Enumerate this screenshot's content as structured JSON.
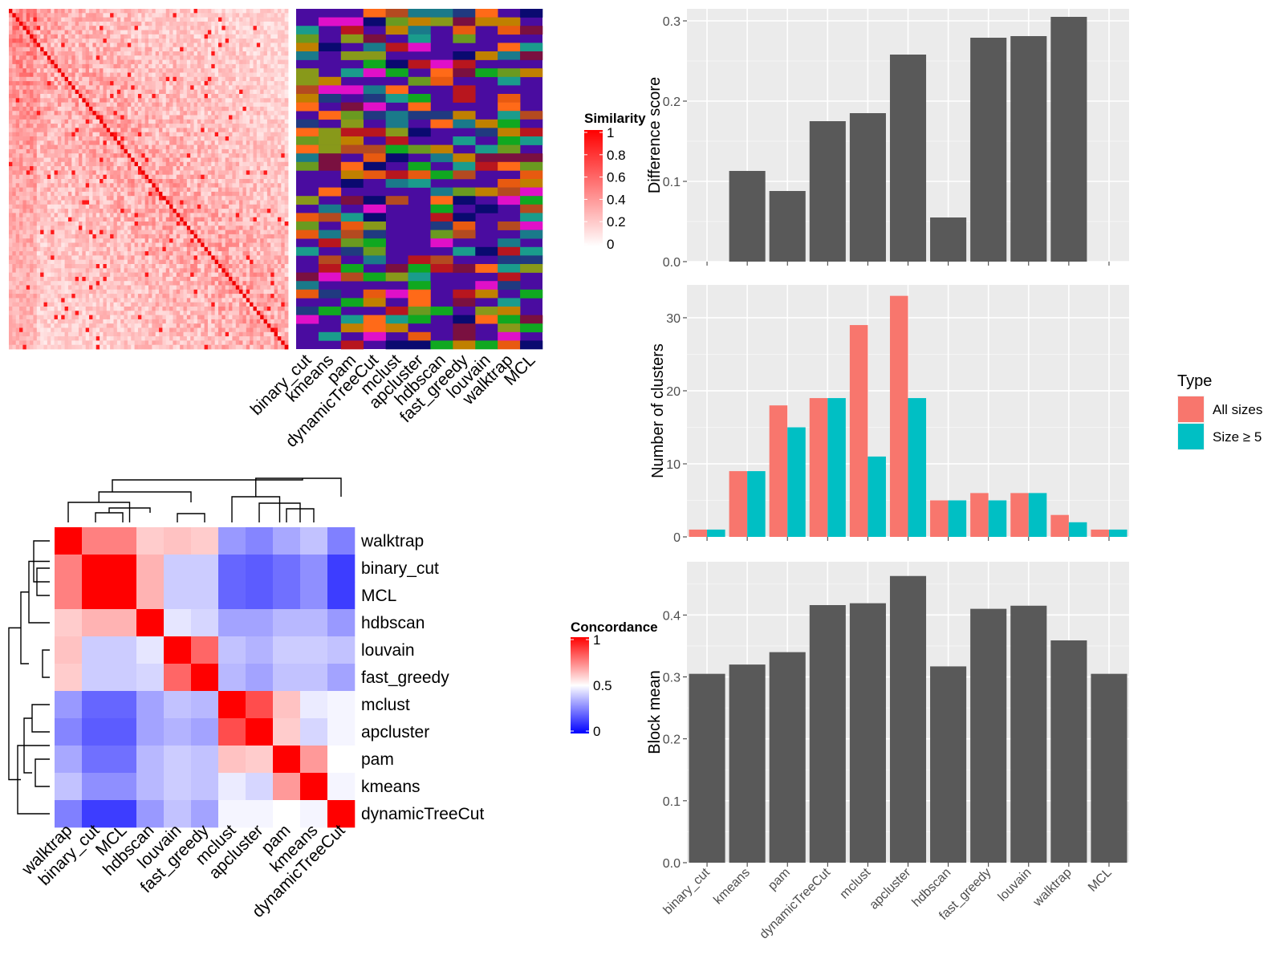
{
  "chart_data": [
    {
      "type": "heatmap",
      "legend_title": "Similarity",
      "legend_ticks": [
        "0",
        "0.2",
        "0.4",
        "0.6",
        "0.8",
        "1"
      ],
      "column_labels": [
        "binary_cut",
        "kmeans",
        "pam",
        "dynamicTreeCut",
        "mclust",
        "apcluster",
        "hdbscan",
        "fast_greedy",
        "louvain",
        "walktrap",
        "MCL"
      ],
      "colors": {
        "low": "#ffffff",
        "high": "#ff0000",
        "diag": "#f10000"
      }
    },
    {
      "type": "heatmap",
      "legend_title": "Concordance",
      "legend_ticks": [
        "0",
        "0.5",
        "1"
      ],
      "labels": [
        "walktrap",
        "binary_cut",
        "MCL",
        "hdbscan",
        "louvain",
        "fast_greedy",
        "mclust",
        "apcluster",
        "pam",
        "kmeans",
        "dynamicTreeCut"
      ],
      "matrix": [
        [
          1.0,
          0.75,
          0.75,
          0.6,
          0.62,
          0.6,
          0.3,
          0.26,
          0.33,
          0.38,
          0.25
        ],
        [
          0.75,
          1.0,
          1.0,
          0.65,
          0.4,
          0.4,
          0.2,
          0.18,
          0.22,
          0.28,
          0.12
        ],
        [
          0.75,
          1.0,
          1.0,
          0.65,
          0.4,
          0.4,
          0.2,
          0.18,
          0.22,
          0.28,
          0.12
        ],
        [
          0.6,
          0.65,
          0.65,
          1.0,
          0.45,
          0.42,
          0.32,
          0.32,
          0.36,
          0.36,
          0.3
        ],
        [
          0.62,
          0.4,
          0.4,
          0.45,
          1.0,
          0.8,
          0.38,
          0.35,
          0.4,
          0.4,
          0.38
        ],
        [
          0.6,
          0.4,
          0.4,
          0.42,
          0.8,
          1.0,
          0.36,
          0.32,
          0.38,
          0.38,
          0.32
        ],
        [
          0.3,
          0.2,
          0.2,
          0.32,
          0.38,
          0.36,
          1.0,
          0.85,
          0.62,
          0.46,
          0.48
        ],
        [
          0.26,
          0.18,
          0.18,
          0.32,
          0.35,
          0.32,
          0.85,
          1.0,
          0.6,
          0.42,
          0.48
        ],
        [
          0.33,
          0.22,
          0.22,
          0.36,
          0.4,
          0.38,
          0.62,
          0.6,
          1.0,
          0.7,
          0.5
        ],
        [
          0.38,
          0.28,
          0.28,
          0.36,
          0.4,
          0.38,
          0.46,
          0.42,
          0.7,
          1.0,
          0.48
        ],
        [
          0.25,
          0.12,
          0.12,
          0.3,
          0.38,
          0.32,
          0.48,
          0.48,
          0.5,
          0.48,
          1.0
        ]
      ],
      "colors": {
        "low": "#0000ff",
        "mid": "#ffffff",
        "high": "#ff0000"
      }
    },
    {
      "type": "bar",
      "categories": [
        "binary_cut",
        "kmeans",
        "pam",
        "dynamicTreeCut",
        "mclust",
        "apcluster",
        "hdbscan",
        "fast_greedy",
        "louvain",
        "walktrap",
        "MCL"
      ],
      "values": [
        0,
        0.113,
        0.088,
        0.175,
        0.185,
        0.258,
        0.055,
        0.279,
        0.281,
        0.305,
        0
      ],
      "ylabel": "Difference score",
      "ylim": [
        0,
        0.315
      ],
      "yticks": [
        "0.0",
        "0.1",
        "0.2",
        "0.3"
      ],
      "color": "#595959"
    },
    {
      "type": "bar",
      "categories": [
        "binary_cut",
        "kmeans",
        "pam",
        "dynamicTreeCut",
        "mclust",
        "apcluster",
        "hdbscan",
        "fast_greedy",
        "louvain",
        "walktrap",
        "MCL"
      ],
      "series": [
        {
          "name": "All sizes",
          "values": [
            1,
            9,
            18,
            19,
            29,
            33,
            5,
            6,
            6,
            3,
            1
          ],
          "color": "#f8766d"
        },
        {
          "name": "Size ≥ 5",
          "values": [
            1,
            9,
            15,
            19,
            11,
            19,
            5,
            5,
            6,
            2,
            1
          ],
          "color": "#00bfc4"
        }
      ],
      "ylabel": "Number of clusters",
      "ylim": [
        0,
        34.5
      ],
      "yticks": [
        "0",
        "10",
        "20",
        "30"
      ],
      "legend_title": "Type",
      "legend_position": "right"
    },
    {
      "type": "bar",
      "categories": [
        "binary_cut",
        "kmeans",
        "pam",
        "dynamicTreeCut",
        "mclust",
        "apcluster",
        "hdbscan",
        "fast_greedy",
        "louvain",
        "walktrap",
        "MCL"
      ],
      "values": [
        0.305,
        0.32,
        0.34,
        0.416,
        0.419,
        0.463,
        0.317,
        0.41,
        0.415,
        0.359,
        0.305
      ],
      "ylabel": "Block mean",
      "ylim": [
        0,
        0.486
      ],
      "yticks": [
        "0.0",
        "0.1",
        "0.2",
        "0.3",
        "0.4"
      ],
      "color": "#595959"
    }
  ]
}
